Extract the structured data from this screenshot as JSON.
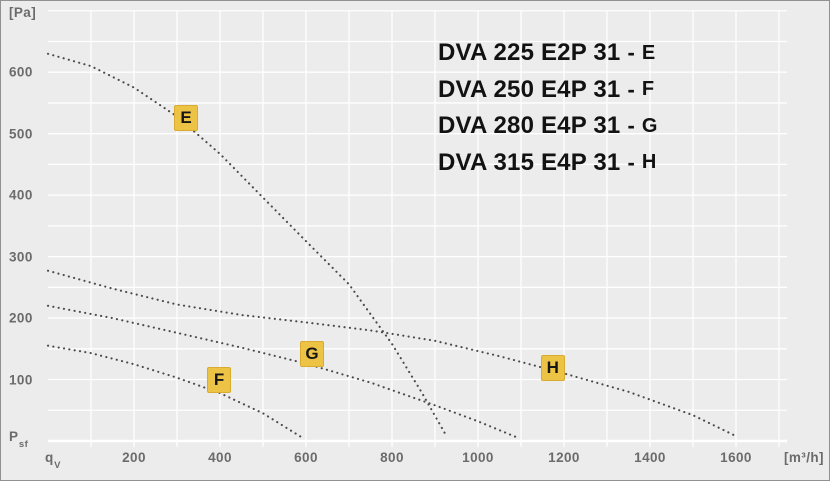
{
  "colors": {
    "background": "#ececec",
    "grid": "#ffffff",
    "curve_dots": "#4a4a4a",
    "badge_bg": "#edc345",
    "badge_border": "#d9ab31",
    "badge_text": "#161616",
    "legend_text": "#121212",
    "axis_text": "#6b6b6b",
    "frame": "#919191"
  },
  "legend": {
    "separator": "-",
    "entries": [
      {
        "model": "DVA 225 E2P 31",
        "curve": "E"
      },
      {
        "model": "DVA 250 E4P 31",
        "curve": "F"
      },
      {
        "model": "DVA 280 E4P 31",
        "curve": "G"
      },
      {
        "model": "DVA 315 E4P 31",
        "curve": "H"
      }
    ]
  },
  "chart_data": {
    "type": "line",
    "style": "dotted",
    "grid": true,
    "legend_position": "top-right",
    "x_axis": {
      "symbol_main": "q",
      "symbol_sub": "V",
      "unit": "[m³/h]",
      "min": 0,
      "max": 1700,
      "grid_step": 100,
      "ticks": [
        {
          "q": 200,
          "label": "200"
        },
        {
          "q": 400,
          "label": "400"
        },
        {
          "q": 600,
          "label": "600"
        },
        {
          "q": 800,
          "label": "800"
        },
        {
          "q": 1000,
          "label": "1000"
        },
        {
          "q": 1200,
          "label": "1200"
        },
        {
          "q": 1400,
          "label": "1400"
        },
        {
          "q": 1600,
          "label": "1600"
        }
      ]
    },
    "y_axis": {
      "symbol_main": "P",
      "symbol_sub": "sf",
      "unit": "[Pa]",
      "min": 0,
      "max": 700,
      "grid_step": 50,
      "ticks": [
        {
          "pa": 600,
          "label": "600"
        },
        {
          "pa": 500,
          "label": "500"
        },
        {
          "pa": 400,
          "label": "400"
        },
        {
          "pa": 300,
          "label": "300"
        },
        {
          "pa": 200,
          "label": "200"
        },
        {
          "pa": 100,
          "label": "100"
        }
      ]
    },
    "series": [
      {
        "id": "E",
        "model": "DVA 225 E2P 31",
        "badge_at": {
          "q": 321,
          "pa": 525
        },
        "points": [
          [
            0,
            630
          ],
          [
            100,
            610
          ],
          [
            200,
            575
          ],
          [
            300,
            528
          ],
          [
            400,
            467
          ],
          [
            500,
            396
          ],
          [
            600,
            325
          ],
          [
            700,
            255
          ],
          [
            800,
            158
          ],
          [
            870,
            78
          ],
          [
            925,
            10
          ]
        ]
      },
      {
        "id": "F",
        "model": "DVA 250 E4P 31",
        "badge_at": {
          "q": 398,
          "pa": 100
        },
        "points": [
          [
            0,
            155
          ],
          [
            100,
            143
          ],
          [
            200,
            125
          ],
          [
            300,
            103
          ],
          [
            400,
            78
          ],
          [
            500,
            45
          ],
          [
            590,
            6
          ]
        ]
      },
      {
        "id": "G",
        "model": "DVA 280 E4P 31",
        "badge_at": {
          "q": 614,
          "pa": 142
        },
        "points": [
          [
            0,
            220
          ],
          [
            150,
            200
          ],
          [
            300,
            176
          ],
          [
            450,
            152
          ],
          [
            600,
            126
          ],
          [
            750,
            95
          ],
          [
            900,
            58
          ],
          [
            1000,
            32
          ],
          [
            1090,
            6
          ]
        ]
      },
      {
        "id": "H",
        "model": "DVA 315 E4P 31",
        "badge_at": {
          "q": 1174,
          "pa": 119
        },
        "points": [
          [
            0,
            277
          ],
          [
            150,
            248
          ],
          [
            300,
            222
          ],
          [
            450,
            205
          ],
          [
            600,
            193
          ],
          [
            750,
            180
          ],
          [
            900,
            163
          ],
          [
            1050,
            138
          ],
          [
            1200,
            110
          ],
          [
            1350,
            80
          ],
          [
            1500,
            42
          ],
          [
            1600,
            8
          ]
        ]
      }
    ]
  }
}
